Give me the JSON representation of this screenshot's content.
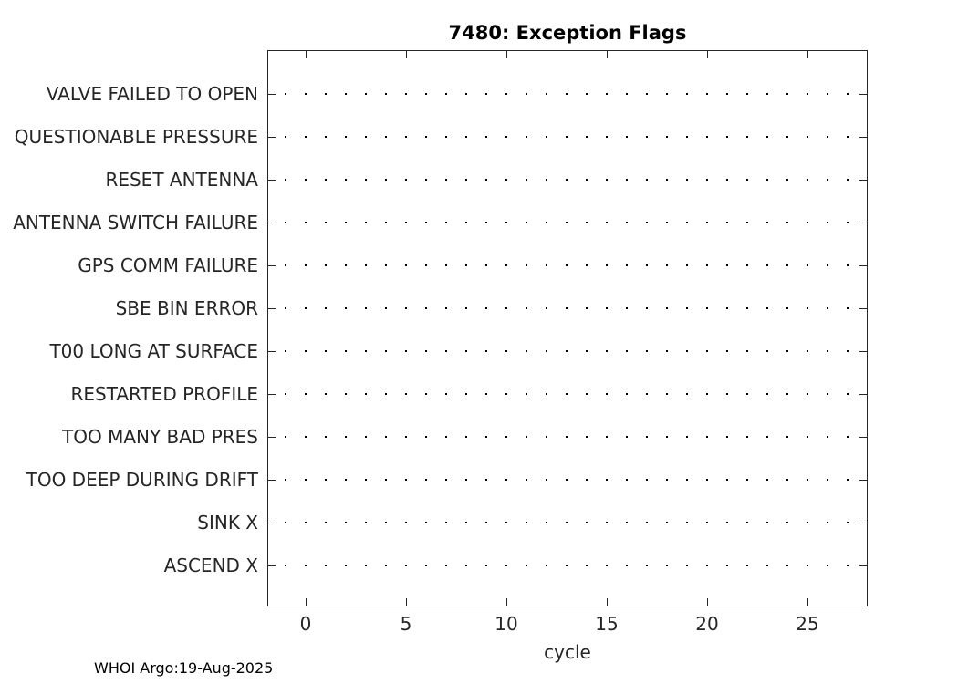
{
  "title": "7480: Exception Flags",
  "footer": "WHOI Argo:19-Aug-2025",
  "colors": {
    "axis": "#262626",
    "marker": "#000000",
    "title": "#000000",
    "background": "#ffffff"
  },
  "chart_data": {
    "type": "scatter",
    "title": "7480: Exception Flags",
    "xlabel": "cycle",
    "ylabel": "",
    "categories": [
      "VALVE FAILED TO OPEN",
      "QUESTIONABLE PRESSURE",
      "RESET ANTENNA",
      "ANTENNA SWITCH FAILURE",
      "GPS COMM FAILURE",
      "SBE BIN ERROR",
      "T00 LONG AT SURFACE",
      "RESTARTED PROFILE",
      "TOO MANY BAD PRES",
      "TOO DEEP DURING DRIFT",
      "SINK X",
      "ASCEND X"
    ],
    "x_values": [
      -1,
      0,
      1,
      2,
      3,
      4,
      5,
      6,
      7,
      8,
      9,
      10,
      11,
      12,
      13,
      14,
      15,
      16,
      17,
      18,
      19,
      20,
      21,
      22,
      23,
      24,
      25,
      26,
      27
    ],
    "marker_per_category": "every category row has one dot marker at each x value",
    "x_ticks": [
      0,
      5,
      10,
      15,
      20,
      25
    ],
    "x_tick_labels": [
      "0",
      "5",
      "10",
      "15",
      "20",
      "25"
    ],
    "xlim": [
      -1.91,
      28.0
    ],
    "ylim": [
      0,
      13
    ],
    "grid": false,
    "legend": "none",
    "marker": "dot",
    "marker_color": "#000000",
    "axis_color": "#262626"
  }
}
